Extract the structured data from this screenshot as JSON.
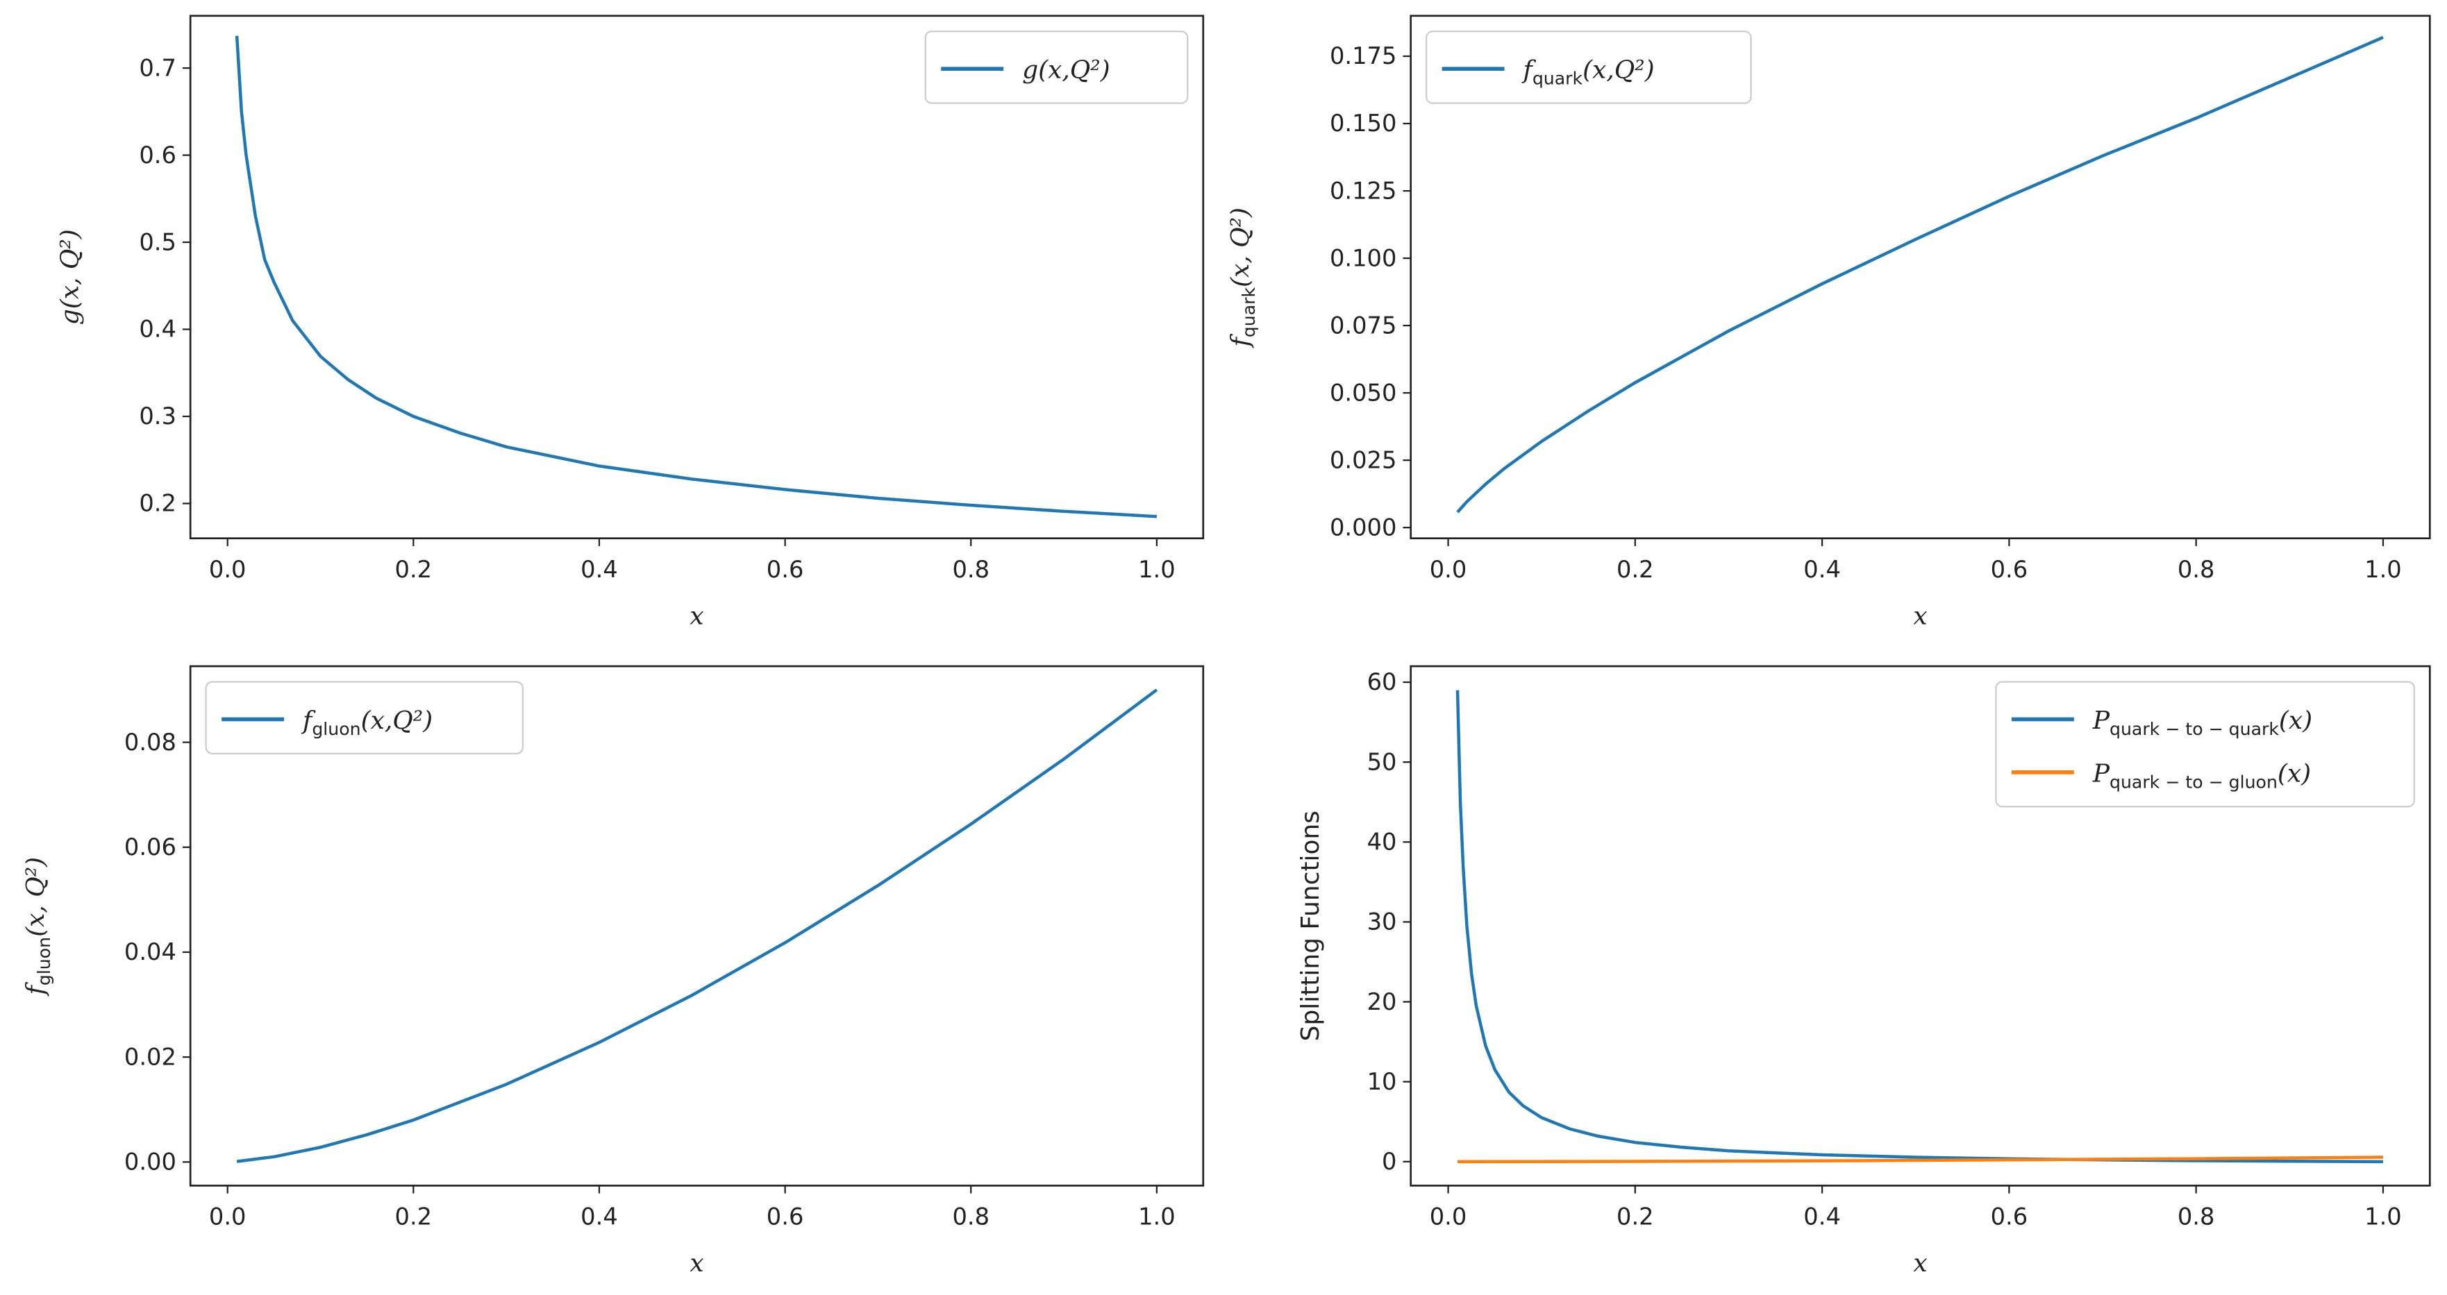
{
  "chart_data": [
    {
      "type": "line",
      "xlabel": "x",
      "ylabel": "g(x, Q²)",
      "xlim": [
        -0.04,
        1.05
      ],
      "ylim": [
        0.16,
        0.76
      ],
      "xticks": [
        "0.0",
        "0.2",
        "0.4",
        "0.6",
        "0.8",
        "1.0"
      ],
      "yticks": [
        "0.2",
        "0.3",
        "0.4",
        "0.5",
        "0.6",
        "0.7"
      ],
      "legend_position": "top-right",
      "series": [
        {
          "name": "g(x,Q²)",
          "color": "#1f77b4",
          "x": [
            0.01,
            0.015,
            0.02,
            0.03,
            0.04,
            0.05,
            0.07,
            0.1,
            0.13,
            0.16,
            0.2,
            0.25,
            0.3,
            0.4,
            0.5,
            0.6,
            0.7,
            0.8,
            0.9,
            1.0
          ],
          "y": [
            0.737,
            0.65,
            0.6,
            0.53,
            0.48,
            0.454,
            0.41,
            0.369,
            0.342,
            0.321,
            0.3,
            0.281,
            0.265,
            0.243,
            0.228,
            0.216,
            0.206,
            0.198,
            0.191,
            0.185
          ]
        }
      ]
    },
    {
      "type": "line",
      "xlabel": "x",
      "ylabel": "f_quark(x, Q²)",
      "xlim": [
        -0.04,
        1.05
      ],
      "ylim": [
        -0.004,
        0.19
      ],
      "xticks": [
        "0.0",
        "0.2",
        "0.4",
        "0.6",
        "0.8",
        "1.0"
      ],
      "yticks": [
        "0.000",
        "0.025",
        "0.050",
        "0.075",
        "0.100",
        "0.125",
        "0.150",
        "0.175"
      ],
      "legend_position": "top-left",
      "series": [
        {
          "name": "f_quark(x,Q²)",
          "color": "#1f77b4",
          "x": [
            0.01,
            0.02,
            0.04,
            0.06,
            0.1,
            0.15,
            0.2,
            0.3,
            0.4,
            0.5,
            0.6,
            0.7,
            0.8,
            0.9,
            1.0
          ],
          "y": [
            0.0057,
            0.0096,
            0.0161,
            0.0219,
            0.032,
            0.0433,
            0.0538,
            0.073,
            0.0905,
            0.107,
            0.123,
            0.138,
            0.152,
            0.167,
            0.182
          ]
        }
      ]
    },
    {
      "type": "line",
      "xlabel": "x",
      "ylabel": "f_gluon(x, Q²)",
      "xlim": [
        -0.04,
        1.05
      ],
      "ylim": [
        -0.0045,
        0.0945
      ],
      "xticks": [
        "0.0",
        "0.2",
        "0.4",
        "0.6",
        "0.8",
        "1.0"
      ],
      "yticks": [
        "0.00",
        "0.02",
        "0.04",
        "0.06",
        "0.08"
      ],
      "legend_position": "top-left",
      "series": [
        {
          "name": "f_gluon(x,Q²)",
          "color": "#1f77b4",
          "x": [
            0.01,
            0.05,
            0.1,
            0.15,
            0.2,
            0.3,
            0.4,
            0.5,
            0.6,
            0.7,
            0.8,
            0.9,
            1.0
          ],
          "y": [
            0.0001,
            0.001,
            0.0028,
            0.0052,
            0.008,
            0.0148,
            0.0228,
            0.0318,
            0.0418,
            0.0527,
            0.0644,
            0.0768,
            0.09
          ]
        }
      ]
    },
    {
      "type": "line",
      "xlabel": "x",
      "ylabel": "Splitting Functions",
      "xlim": [
        -0.04,
        1.05
      ],
      "ylim": [
        -3,
        62
      ],
      "xticks": [
        "0.0",
        "0.2",
        "0.4",
        "0.6",
        "0.8",
        "1.0"
      ],
      "yticks": [
        "0",
        "10",
        "20",
        "30",
        "40",
        "50",
        "60"
      ],
      "legend_position": "top-right",
      "series": [
        {
          "name": "P_quark-to-quark(x)",
          "color": "#1f77b4",
          "x": [
            0.01,
            0.013,
            0.016,
            0.02,
            0.025,
            0.03,
            0.04,
            0.05,
            0.065,
            0.08,
            0.1,
            0.13,
            0.16,
            0.2,
            0.25,
            0.3,
            0.4,
            0.5,
            0.6,
            0.7,
            0.8,
            0.9,
            1.0
          ],
          "y": [
            59,
            45,
            37,
            29.5,
            23.5,
            19.5,
            14.5,
            11.5,
            8.7,
            7,
            5.5,
            4.1,
            3.2,
            2.4,
            1.8,
            1.35,
            0.85,
            0.55,
            0.35,
            0.22,
            0.12,
            0.05,
            0.0
          ]
        },
        {
          "name": "P_quark-to-gluon(x)",
          "color": "#ff7f0e",
          "x": [
            0.01,
            0.2,
            0.4,
            0.6,
            0.8,
            1.0
          ],
          "y": [
            0.0,
            0.03,
            0.1,
            0.22,
            0.37,
            0.55
          ]
        }
      ]
    }
  ]
}
